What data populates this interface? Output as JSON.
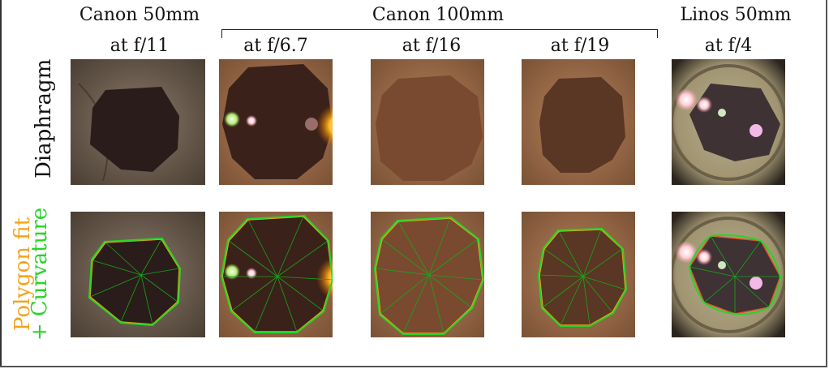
{
  "header": {
    "lens_canon50": "Canon 50mm",
    "lens_canon100": "Canon 100mm",
    "lens_linos50": "Linos 50mm",
    "f11": "at f/11",
    "f67": "at f/6.7",
    "f16": "at f/16",
    "f19": "at f/19",
    "f4": "at f/4"
  },
  "rows": {
    "diaphragm": "Diaphragm",
    "polygon_fit": "Polygon fit",
    "curvature": "+ Curvature"
  },
  "colors": {
    "polygon": "#f2a31b",
    "curvature": "#27d427",
    "text": "#111111"
  }
}
